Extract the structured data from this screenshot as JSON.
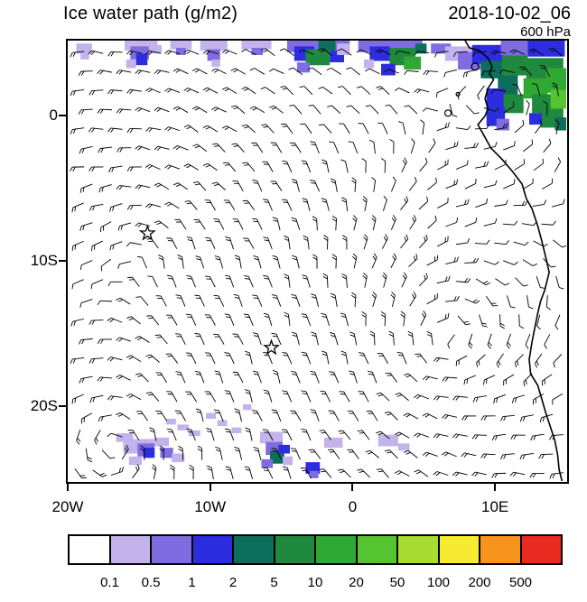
{
  "header": {
    "title": "Ice water path (g/m2)",
    "datetime": "2018-10-02_06",
    "level": "600 hPa"
  },
  "axes": {
    "x_ticks": [
      {
        "label": "20W",
        "lon": -20
      },
      {
        "label": "10W",
        "lon": -10
      },
      {
        "label": "0",
        "lon": 0
      },
      {
        "label": "10E",
        "lon": 10
      }
    ],
    "y_ticks": [
      {
        "label": "0",
        "lat": 0
      },
      {
        "label": "10S",
        "lat": -10
      },
      {
        "label": "20S",
        "lat": -20
      }
    ]
  },
  "colorbar": {
    "labels": [
      "0.1",
      "0.5",
      "1",
      "2",
      "5",
      "10",
      "20",
      "50",
      "100",
      "200",
      "500"
    ]
  },
  "chart_data": {
    "type": "heatmap",
    "title": "Ice water path (g/m2)",
    "valid_datetime": "2018-10-02_06",
    "level": "600 hPa",
    "units": "g/m2",
    "projection": {
      "lon_range": [
        -20,
        15
      ],
      "lat_range": [
        -25.2,
        5.2
      ]
    },
    "contour_levels": [
      0.1,
      0.5,
      1,
      2,
      5,
      10,
      20,
      50,
      100,
      200,
      500
    ],
    "palette": [
      "#ffffff",
      "#c3b2ec",
      "#7e6ce0",
      "#2d2de0",
      "#0e6e5c",
      "#1f8a3d",
      "#2fa834",
      "#55c431",
      "#a8dc32",
      "#f7eb31",
      "#f7941d",
      "#e82a21"
    ],
    "wind_barbs": {
      "cols": 26,
      "rows": 23,
      "color": "#000000"
    },
    "markers": [
      {
        "type": "star",
        "lon": -14.4,
        "lat": -8.1
      },
      {
        "type": "star",
        "lon": -5.7,
        "lat": -16.0
      }
    ],
    "coastline": [
      [
        7.9,
        5.2
      ],
      [
        8.2,
        4.7
      ],
      [
        8.9,
        4.5
      ],
      [
        9.5,
        4.0
      ],
      [
        9.8,
        3.4
      ],
      [
        9.6,
        2.9
      ],
      [
        9.9,
        2.5
      ],
      [
        9.5,
        1.9
      ],
      [
        9.3,
        1.2
      ],
      [
        9.5,
        0.5
      ],
      [
        9.3,
        0.0
      ],
      [
        8.8,
        -0.6
      ],
      [
        9.2,
        -1.3
      ],
      [
        9.7,
        -2.2
      ],
      [
        10.5,
        -3.0
      ],
      [
        11.2,
        -3.8
      ],
      [
        11.9,
        -4.7
      ],
      [
        12.2,
        -5.7
      ],
      [
        12.6,
        -6.4
      ],
      [
        13.0,
        -7.6
      ],
      [
        13.3,
        -8.7
      ],
      [
        13.6,
        -9.9
      ],
      [
        13.8,
        -10.8
      ],
      [
        13.5,
        -12.0
      ],
      [
        13.2,
        -12.8
      ],
      [
        13.0,
        -13.6
      ],
      [
        12.8,
        -14.6
      ],
      [
        12.6,
        -15.6
      ],
      [
        12.4,
        -16.8
      ],
      [
        12.5,
        -17.8
      ],
      [
        13.0,
        -18.6
      ],
      [
        13.3,
        -19.6
      ],
      [
        13.6,
        -20.6
      ],
      [
        13.9,
        -21.5
      ],
      [
        14.2,
        -22.4
      ],
      [
        14.4,
        -23.4
      ],
      [
        14.5,
        -24.4
      ],
      [
        14.7,
        -25.2
      ]
    ],
    "islands": [
      {
        "name": "Sao Tome",
        "lon": 6.7,
        "lat": 0.2,
        "r": 3.5
      },
      {
        "name": "Principe",
        "lon": 7.4,
        "lat": 1.5,
        "r": 2.0
      },
      {
        "name": "Bioko",
        "lon": 8.6,
        "lat": 3.4,
        "r": 4.0
      }
    ],
    "cells": [
      [
        -19.4,
        5.0,
        1.1,
        0.7,
        0.2
      ],
      [
        -19.1,
        4.4,
        0.6,
        0.5,
        0.2
      ],
      [
        -16.0,
        5.2,
        2.3,
        0.7,
        0.2
      ],
      [
        -15.6,
        4.8,
        1.3,
        0.9,
        0.7
      ],
      [
        -15.2,
        4.3,
        0.8,
        0.8,
        1.5
      ],
      [
        -14.3,
        4.9,
        0.9,
        0.6,
        0.2
      ],
      [
        -15.9,
        3.9,
        0.7,
        0.6,
        0.2
      ],
      [
        -12.8,
        5.2,
        1.5,
        0.6,
        0.2
      ],
      [
        -12.4,
        4.7,
        0.7,
        0.5,
        0.7
      ],
      [
        -10.7,
        5.2,
        1.9,
        0.7,
        0.2
      ],
      [
        -10.2,
        4.6,
        0.9,
        0.8,
        0.7
      ],
      [
        -9.9,
        3.9,
        0.6,
        0.5,
        0.2
      ],
      [
        -7.8,
        5.2,
        2.1,
        0.6,
        0.2
      ],
      [
        -7.1,
        4.7,
        0.8,
        0.5,
        0.7
      ],
      [
        -4.6,
        5.2,
        4.4,
        0.8,
        0.7
      ],
      [
        -4.1,
        4.8,
        1.4,
        1.0,
        1.5
      ],
      [
        -3.3,
        4.6,
        1.7,
        1.1,
        7
      ],
      [
        -2.4,
        5.2,
        1.2,
        0.7,
        3
      ],
      [
        -1.6,
        4.5,
        1.0,
        0.8,
        1.5
      ],
      [
        -3.9,
        3.7,
        0.9,
        0.7,
        0.7
      ],
      [
        -1.1,
        5.0,
        0.9,
        0.8,
        0.2
      ],
      [
        0.4,
        5.2,
        4.5,
        0.8,
        0.7
      ],
      [
        1.2,
        4.8,
        1.4,
        1.0,
        1.5
      ],
      [
        2.6,
        4.7,
        1.8,
        1.2,
        7
      ],
      [
        3.6,
        4.1,
        1.2,
        0.9,
        15
      ],
      [
        2.0,
        3.6,
        1.0,
        0.8,
        1.5
      ],
      [
        4.4,
        5.0,
        0.8,
        0.7,
        3
      ],
      [
        0.8,
        3.9,
        0.7,
        0.6,
        0.2
      ],
      [
        5.5,
        5.0,
        1.4,
        0.7,
        0.7
      ],
      [
        6.5,
        4.8,
        2.0,
        1.0,
        0.2
      ],
      [
        7.4,
        4.4,
        1.6,
        1.2,
        0.7
      ],
      [
        8.4,
        4.9,
        2.2,
        1.3,
        1.5
      ],
      [
        10.4,
        5.2,
        2.0,
        1.0,
        0.7
      ],
      [
        12.3,
        5.2,
        2.6,
        1.1,
        1.5
      ],
      [
        9.0,
        3.8,
        1.6,
        1.2,
        3
      ],
      [
        10.5,
        4.2,
        1.8,
        1.4,
        7
      ],
      [
        12.2,
        4.0,
        2.6,
        1.5,
        7
      ],
      [
        13.6,
        3.3,
        1.4,
        1.7,
        15
      ],
      [
        12.0,
        2.6,
        1.7,
        1.4,
        15
      ],
      [
        10.2,
        2.8,
        1.4,
        1.4,
        3
      ],
      [
        9.4,
        1.9,
        1.3,
        1.6,
        1.5
      ],
      [
        10.6,
        1.5,
        1.4,
        1.3,
        7
      ],
      [
        12.6,
        1.5,
        2.2,
        1.3,
        7
      ],
      [
        13.9,
        1.8,
        1.1,
        1.3,
        30
      ],
      [
        9.4,
        0.6,
        1.3,
        1.3,
        1.5
      ],
      [
        10.1,
        -0.2,
        0.9,
        0.8,
        0.7
      ],
      [
        13.2,
        0.3,
        1.6,
        1.1,
        7
      ],
      [
        14.2,
        -0.1,
        0.8,
        0.9,
        3
      ],
      [
        12.4,
        0.2,
        0.9,
        0.8,
        1.5
      ],
      [
        -16.6,
        -21.9,
        1.2,
        0.6,
        0.2
      ],
      [
        -16.1,
        -22.3,
        2.2,
        1.0,
        0.2
      ],
      [
        -15.1,
        -22.6,
        1.2,
        0.9,
        0.7
      ],
      [
        -14.7,
        -22.9,
        0.8,
        0.7,
        1.5
      ],
      [
        -13.9,
        -22.2,
        1.0,
        0.6,
        0.2
      ],
      [
        -13.5,
        -22.9,
        0.9,
        0.7,
        0.7
      ],
      [
        -12.7,
        -23.3,
        0.9,
        0.6,
        0.2
      ],
      [
        -15.7,
        -23.5,
        0.9,
        0.6,
        0.2
      ],
      [
        -13.1,
        -20.9,
        0.7,
        0.4,
        0.2
      ],
      [
        -12.3,
        -21.3,
        0.8,
        0.4,
        0.2
      ],
      [
        -11.5,
        -21.7,
        0.8,
        0.4,
        0.2
      ],
      [
        -10.3,
        -20.5,
        0.7,
        0.4,
        0.2
      ],
      [
        -9.5,
        -21.0,
        0.7,
        0.4,
        0.2
      ],
      [
        -8.5,
        -21.5,
        0.7,
        0.4,
        0.2
      ],
      [
        -7.7,
        -19.9,
        0.6,
        0.4,
        0.2
      ],
      [
        -6.5,
        -21.8,
        1.6,
        0.8,
        0.2
      ],
      [
        -6.1,
        -22.5,
        1.2,
        0.9,
        0.7
      ],
      [
        -5.8,
        -23.1,
        1.0,
        0.9,
        3
      ],
      [
        -5.2,
        -22.7,
        0.8,
        0.6,
        1.5
      ],
      [
        -6.4,
        -23.7,
        0.8,
        0.6,
        0.7
      ],
      [
        -4.9,
        -23.5,
        0.7,
        0.6,
        0.2
      ],
      [
        -3.3,
        -23.9,
        1.0,
        0.8,
        1.5
      ],
      [
        -3.0,
        -24.5,
        0.6,
        0.5,
        0.7
      ],
      [
        -2.0,
        -22.2,
        1.3,
        0.7,
        0.2
      ],
      [
        1.8,
        -22.0,
        1.4,
        0.8,
        0.2
      ],
      [
        3.2,
        -22.6,
        0.8,
        0.5,
        0.2
      ]
    ]
  }
}
